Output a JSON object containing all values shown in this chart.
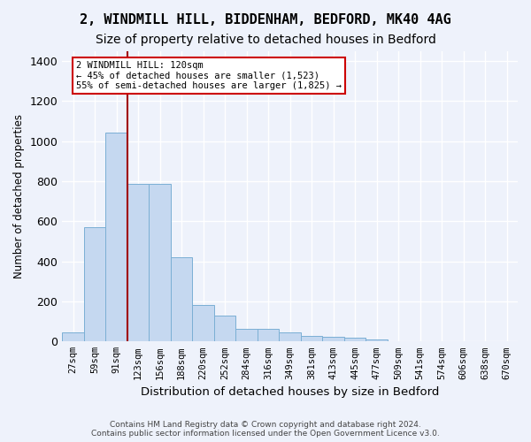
{
  "title": "2, WINDMILL HILL, BIDDENHAM, BEDFORD, MK40 4AG",
  "subtitle": "Size of property relative to detached houses in Bedford",
  "xlabel": "Distribution of detached houses by size in Bedford",
  "ylabel": "Number of detached properties",
  "footer_line1": "Contains HM Land Registry data © Crown copyright and database right 2024.",
  "footer_line2": "Contains public sector information licensed under the Open Government Licence v3.0.",
  "bin_labels": [
    "27sqm",
    "59sqm",
    "91sqm",
    "123sqm",
    "156sqm",
    "188sqm",
    "220sqm",
    "252sqm",
    "284sqm",
    "316sqm",
    "349sqm",
    "381sqm",
    "413sqm",
    "445sqm",
    "477sqm",
    "509sqm",
    "541sqm",
    "574sqm",
    "606sqm",
    "638sqm",
    "670sqm"
  ],
  "bar_values": [
    45,
    570,
    1040,
    785,
    785,
    420,
    180,
    130,
    65,
    65,
    45,
    30,
    25,
    20,
    12,
    0,
    0,
    0,
    0,
    0,
    0
  ],
  "bar_color": "#c5d8f0",
  "bar_edge_color": "#7bafd4",
  "vline_x": 3,
  "vline_color": "#a00000",
  "annotation_line1": "2 WINDMILL HILL: 120sqm",
  "annotation_line2": "← 45% of detached houses are smaller (1,523)",
  "annotation_line3": "55% of semi-detached houses are larger (1,825) →",
  "ylim": [
    0,
    1450
  ],
  "background_color": "#eef2fb",
  "plot_bg_color": "#eef2fb",
  "grid_color": "#ffffff",
  "title_fontsize": 11,
  "subtitle_fontsize": 10
}
